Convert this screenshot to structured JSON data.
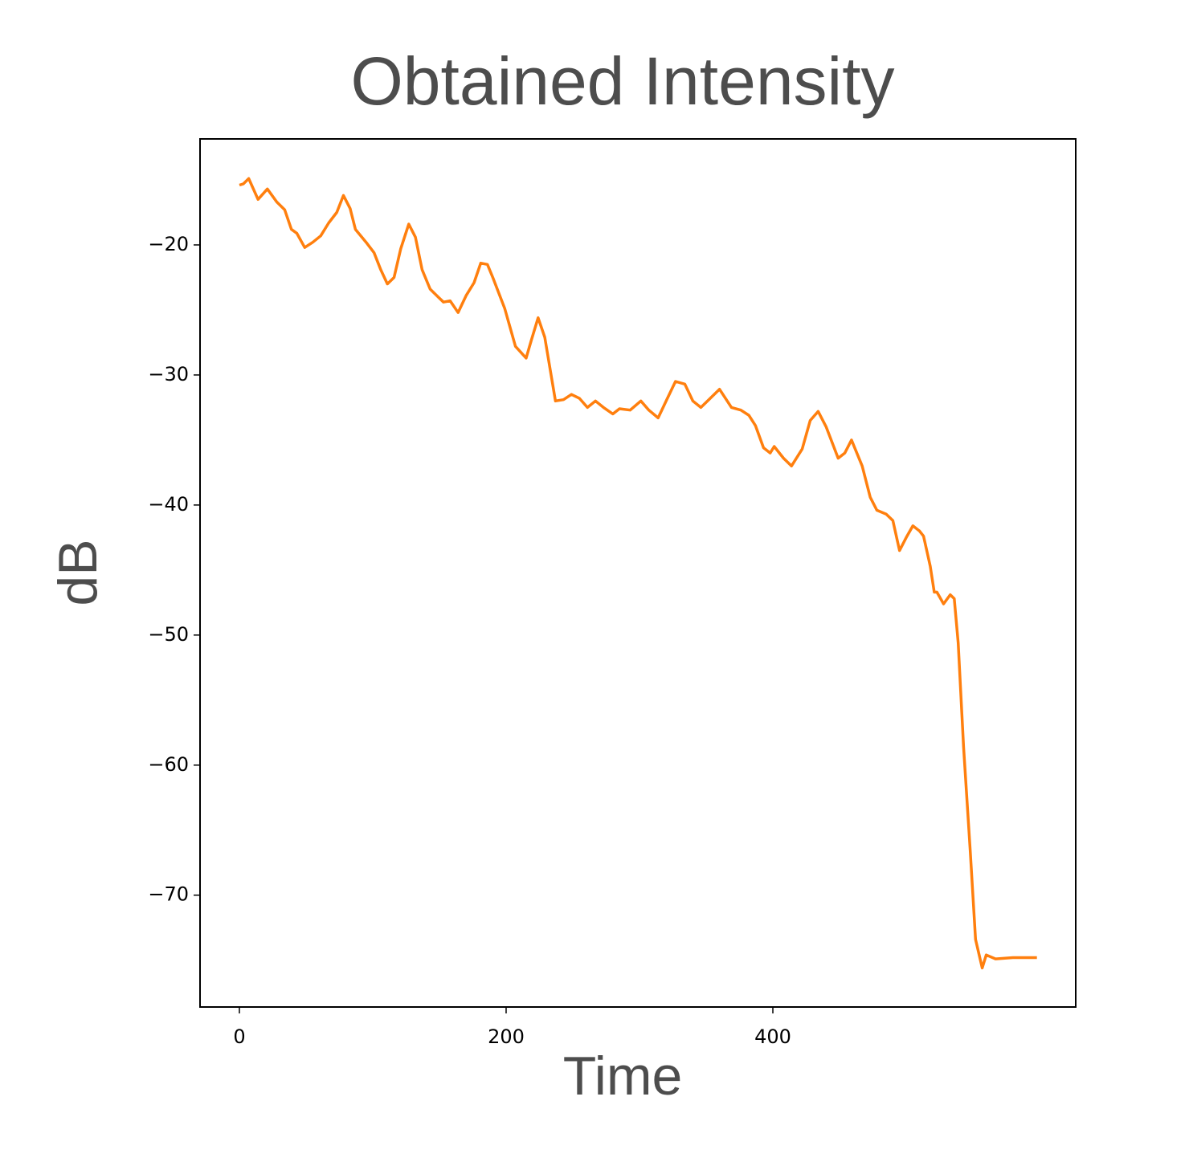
{
  "chart_data": {
    "type": "line",
    "title": "Obtained Intensity",
    "x_label": "Time",
    "y_label": "dB",
    "x": [
      0,
      3,
      7,
      14,
      21,
      28,
      34,
      39,
      43,
      49,
      55,
      61,
      67,
      73,
      78,
      83,
      87,
      95,
      101,
      106,
      111,
      116,
      121,
      127,
      132,
      137,
      143,
      149,
      153,
      158,
      164,
      170,
      176,
      181,
      186,
      190,
      199,
      207,
      215,
      219,
      224,
      229,
      237,
      243,
      249,
      255,
      261,
      267,
      273,
      280,
      285,
      293,
      301,
      307,
      314,
      320,
      327,
      334,
      340,
      346,
      352,
      360,
      369,
      376,
      382,
      387,
      393,
      398,
      401,
      408,
      414,
      422,
      428,
      434,
      440,
      449,
      454,
      459,
      467,
      473,
      478,
      485,
      490,
      495,
      500,
      505,
      510,
      513,
      518,
      521,
      523,
      528,
      533,
      536,
      539,
      543,
      548,
      552,
      557,
      560,
      567,
      580,
      598
    ],
    "series": [
      {
        "name": "dB",
        "color": "#ff7f0e",
        "values": [
          -15.4,
          -15.3,
          -14.9,
          -16.5,
          -15.7,
          -16.7,
          -17.3,
          -18.8,
          -19.1,
          -20.2,
          -19.8,
          -19.3,
          -18.3,
          -17.5,
          -16.2,
          -17.2,
          -18.8,
          -19.8,
          -20.6,
          -21.9,
          -23.0,
          -22.5,
          -20.3,
          -18.4,
          -19.4,
          -21.9,
          -23.4,
          -24.0,
          -24.4,
          -24.3,
          -25.2,
          -23.9,
          -22.9,
          -21.4,
          -21.5,
          -22.5,
          -24.9,
          -27.8,
          -28.7,
          -27.3,
          -25.6,
          -27.1,
          -32.0,
          -31.9,
          -31.5,
          -31.8,
          -32.5,
          -32.0,
          -32.5,
          -33.0,
          -32.6,
          -32.7,
          -32.0,
          -32.7,
          -33.3,
          -32.0,
          -30.5,
          -30.7,
          -32.0,
          -32.5,
          -31.9,
          -31.1,
          -32.5,
          -32.7,
          -33.1,
          -33.9,
          -35.6,
          -36.0,
          -35.5,
          -36.4,
          -37.0,
          -35.7,
          -33.5,
          -32.8,
          -34.0,
          -36.4,
          -36.0,
          -35.0,
          -37.0,
          -39.4,
          -40.4,
          -40.7,
          -41.2,
          -43.5,
          -42.5,
          -41.6,
          -42.0,
          -42.4,
          -44.7,
          -46.7,
          -46.7,
          -47.6,
          -46.9,
          -47.2,
          -50.6,
          -58.6,
          -66.6,
          -73.4,
          -75.6,
          -74.6,
          -74.9,
          -74.8,
          -74.8
        ]
      }
    ],
    "xlim": [
      -29.5,
      627.1
    ],
    "ylim": [
      -78.6,
      -11.85
    ],
    "xticks": [
      0,
      200,
      400
    ],
    "yticks": [
      {
        "value": -20,
        "label": "−20"
      },
      {
        "value": -30,
        "label": "−30"
      },
      {
        "value": -40,
        "label": "−40"
      },
      {
        "value": -50,
        "label": "−50"
      },
      {
        "value": -60,
        "label": "−60"
      },
      {
        "value": -70,
        "label": "−70"
      }
    ]
  }
}
